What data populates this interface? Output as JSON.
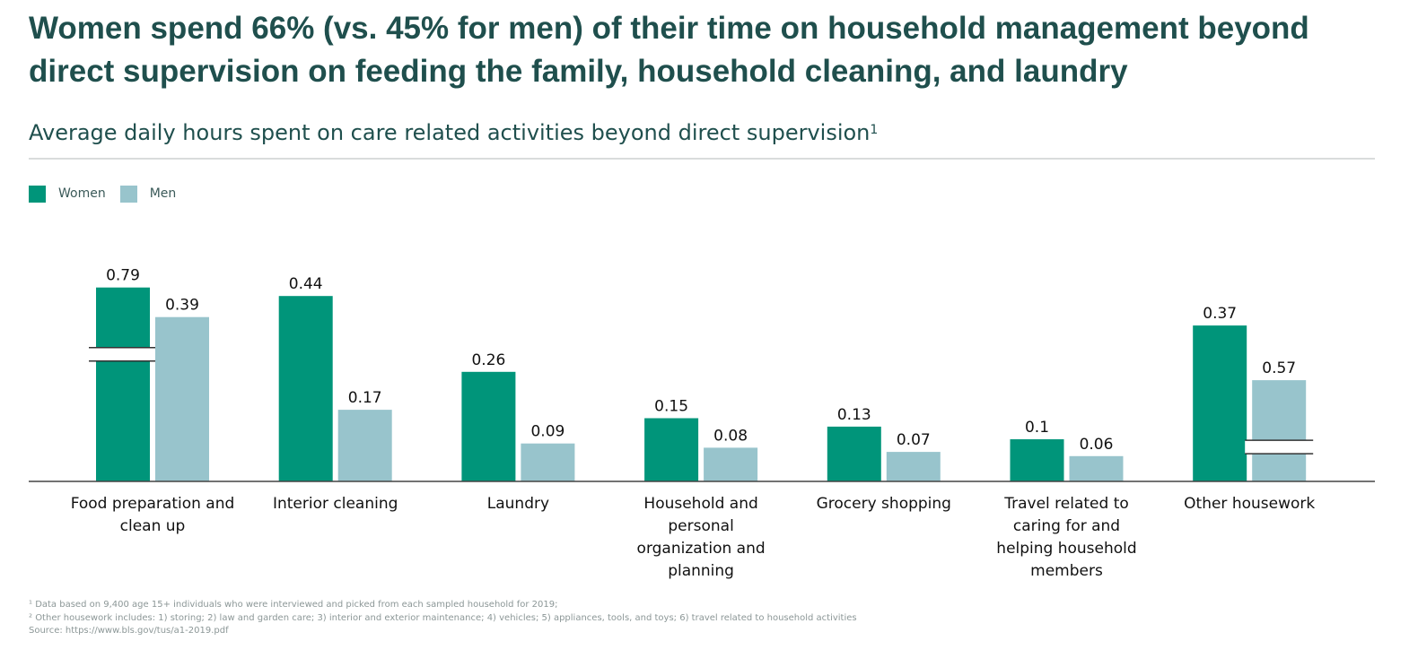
{
  "title": "Women spend 66% (vs. 45% for men) of their time on household management beyond direct supervision on feeding the family, household cleaning, and laundry",
  "subtitle": "Average daily hours spent on care related activities beyond direct supervision",
  "subtitle_sup": "1",
  "footnotes": {
    "note1": "¹ Data based on 9,400 age 15+ individuals who were interviewed and picked from each sampled household for 2019;",
    "note2": "² Other housework includes: 1) storing; 2) law and garden care; 3) interior and exterior maintenance; 4) vehicles; 5) appliances, tools, and toys; 6) travel related to household activities",
    "source": "Source: https://www.bls.gov/tus/a1-2019.pdf"
  },
  "chart_data": {
    "type": "bar",
    "categories": [
      "Food preparation and clean up",
      "Interior cleaning",
      "Laundry",
      "Household and personal organization and planning",
      "Grocery shopping",
      "Travel related to caring for and helping household members",
      "Other housework"
    ],
    "category_lines": [
      [
        "Food preparation and",
        "clean up"
      ],
      [
        "Interior cleaning"
      ],
      [
        "Laundry"
      ],
      [
        "Household and",
        "personal",
        "organization and",
        "planning"
      ],
      [
        "Grocery shopping"
      ],
      [
        "Travel related to",
        "caring for and",
        "helping household",
        "members"
      ],
      [
        "Other housework"
      ]
    ],
    "series": [
      {
        "name": "Women",
        "color": "#00957a",
        "values": [
          0.79,
          0.44,
          0.26,
          0.15,
          0.13,
          0.1,
          0.37
        ],
        "labels": [
          "0.79",
          "0.44",
          "0.26",
          "0.15",
          "0.13",
          "0.1",
          "0.37"
        ]
      },
      {
        "name": "Men",
        "color": "#98c4cc",
        "values": [
          0.39,
          0.17,
          0.09,
          0.08,
          0.07,
          0.06,
          0.57
        ],
        "labels": [
          "0.39",
          "0.17",
          "0.09",
          "0.08",
          "0.07",
          "0.06",
          "0.57"
        ]
      }
    ],
    "axis_breaks": [
      {
        "series": 0,
        "category": 0
      },
      {
        "series": 1,
        "category": 6
      }
    ],
    "title": "Average daily hours spent on care related activities beyond direct supervision",
    "xlabel": "",
    "ylabel": "",
    "legend_position": "top-left",
    "grid": false
  }
}
